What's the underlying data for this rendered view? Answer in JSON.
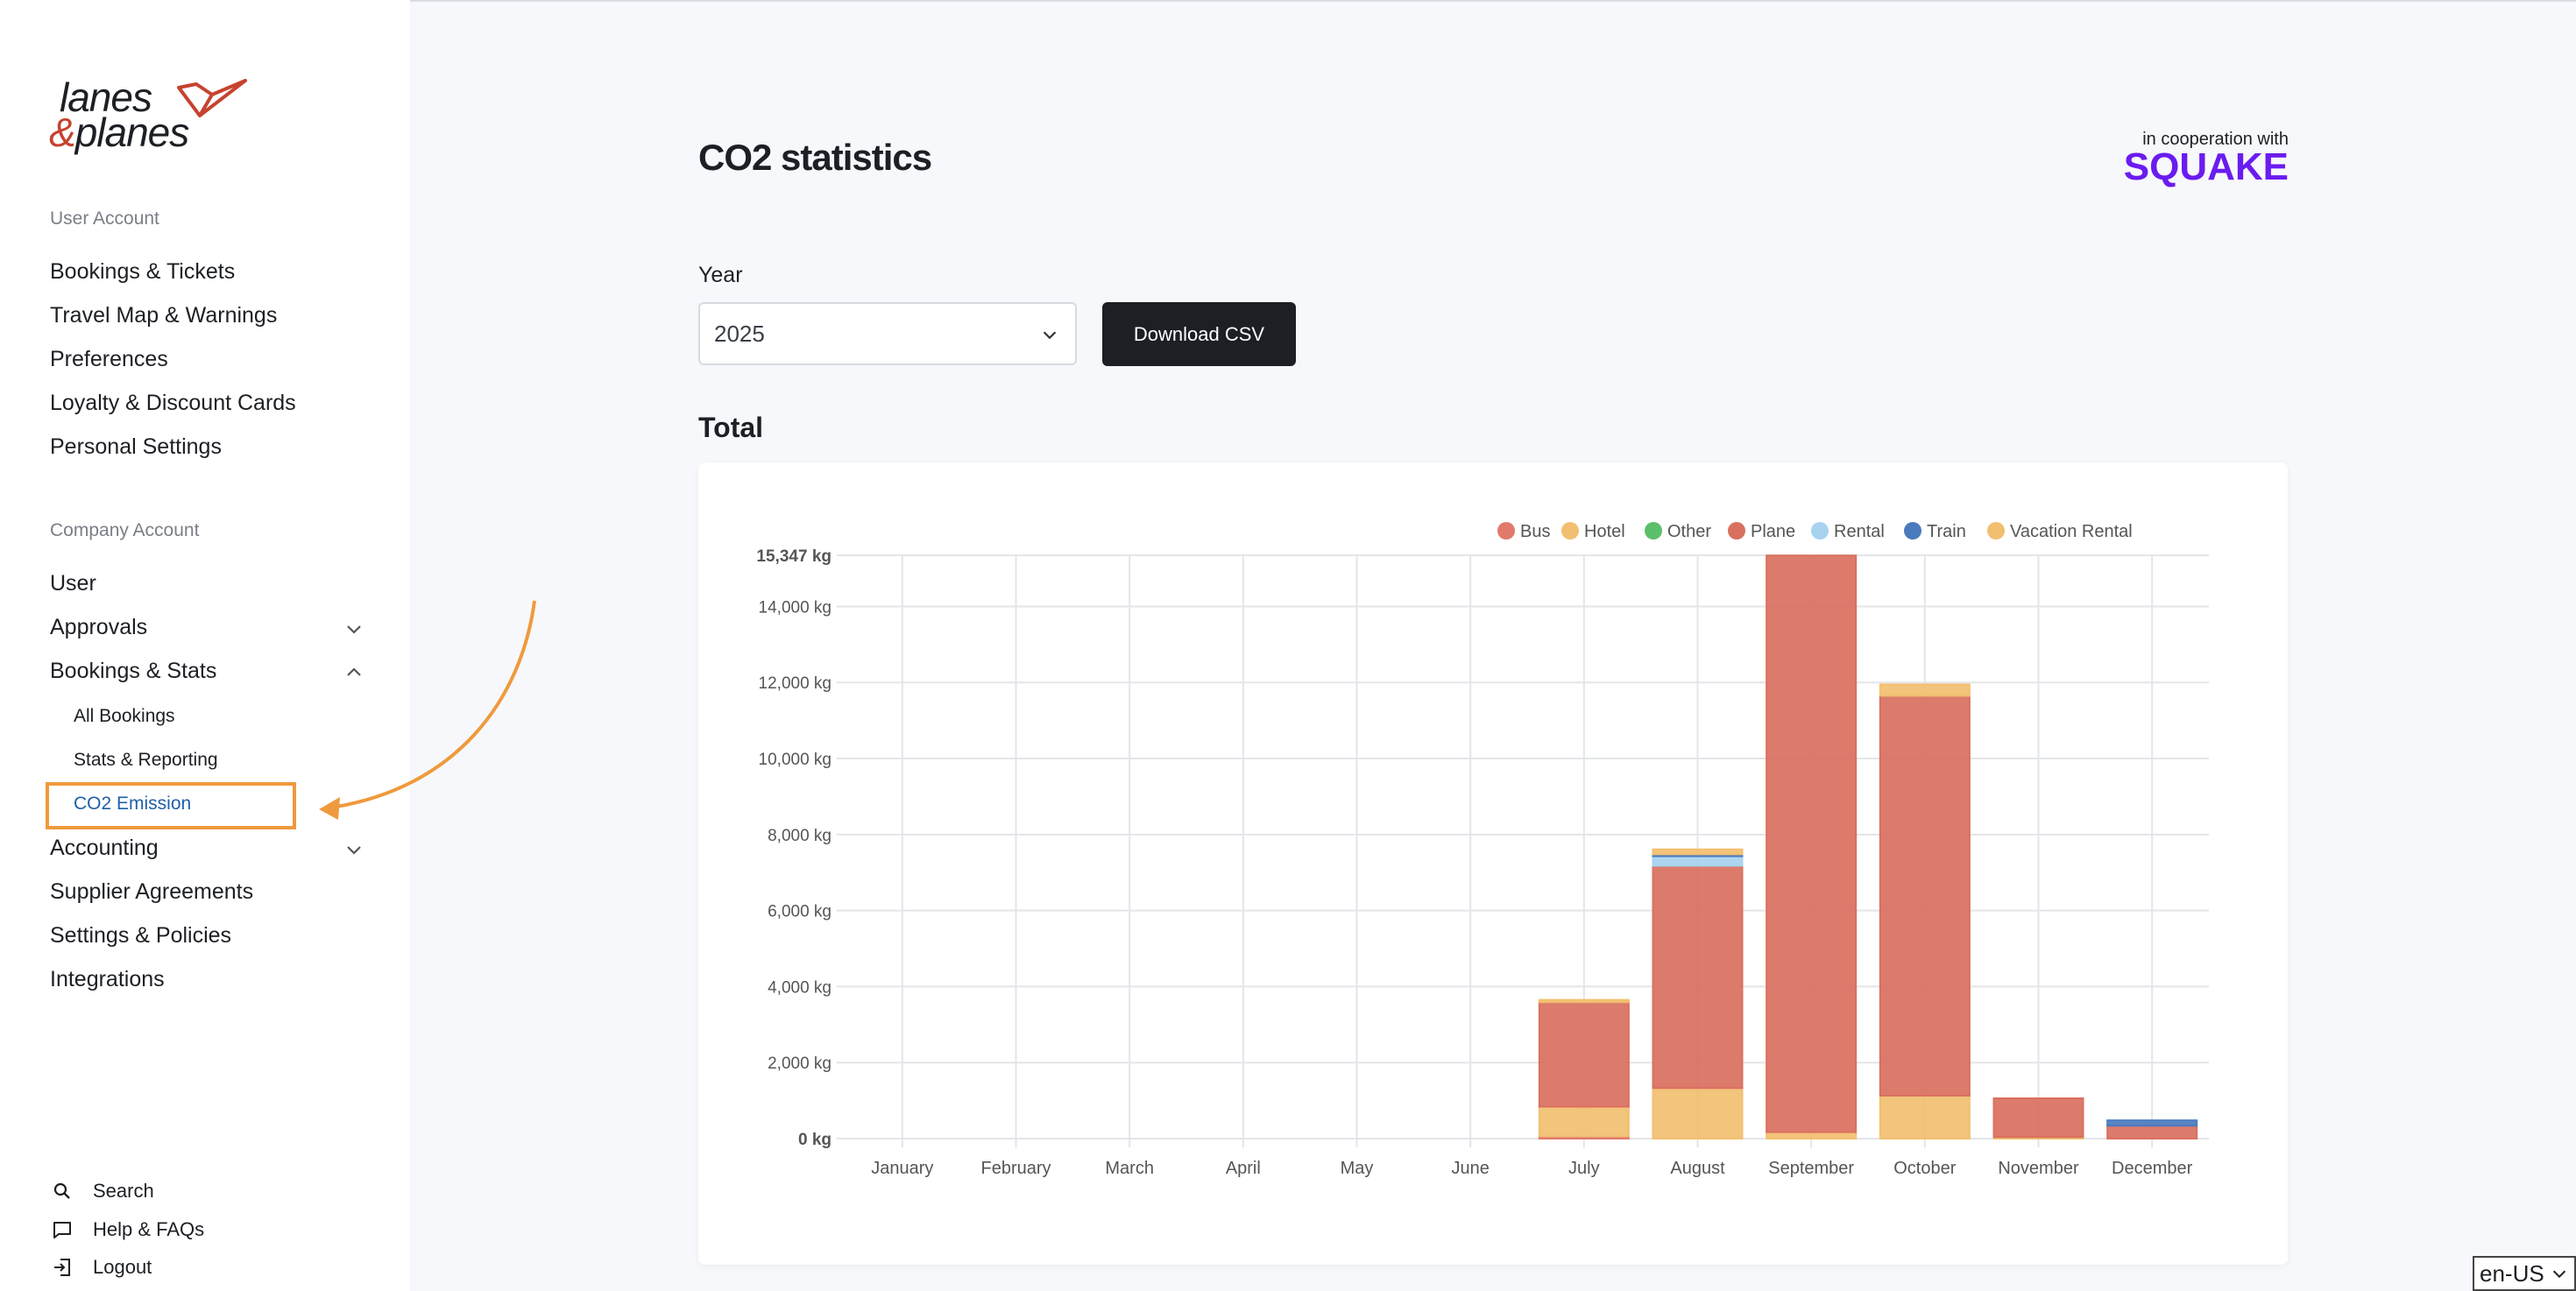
{
  "brand": {
    "line1": "lanes",
    "amp": "&",
    "line2": "planes"
  },
  "sidebar": {
    "user_account_label": "User Account",
    "user_items": [
      {
        "label": "Bookings & Tickets"
      },
      {
        "label": "Travel Map & Warnings"
      },
      {
        "label": "Preferences"
      },
      {
        "label": "Loyalty & Discount Cards"
      },
      {
        "label": "Personal Settings"
      }
    ],
    "company_account_label": "Company Account",
    "company_items": [
      {
        "label": "User"
      },
      {
        "label": "Approvals"
      },
      {
        "label": "Bookings & Stats"
      },
      {
        "label": "Accounting"
      },
      {
        "label": "Supplier Agreements"
      },
      {
        "label": "Settings & Policies"
      },
      {
        "label": "Integrations"
      }
    ],
    "bookings_sub_items": [
      {
        "label": "All Bookings"
      },
      {
        "label": "Stats & Reporting"
      },
      {
        "label": "CO2 Emission"
      }
    ],
    "footer": [
      {
        "label": "Search",
        "icon": "search-icon"
      },
      {
        "label": "Help & FAQs",
        "icon": "chat-icon"
      },
      {
        "label": "Logout",
        "icon": "logout-icon"
      }
    ]
  },
  "main": {
    "title": "CO2 statistics",
    "coop_small": "in cooperation with",
    "coop_brand": "SQUAKE",
    "year_label": "Year",
    "year_value": "2025",
    "download_label": "Download CSV",
    "total_title": "Total"
  },
  "lang": "en-US",
  "chart_data": {
    "type": "bar",
    "stacked": true,
    "categories": [
      "January",
      "February",
      "March",
      "April",
      "May",
      "June",
      "July",
      "August",
      "September",
      "October",
      "November",
      "December"
    ],
    "series": [
      {
        "name": "Bus",
        "color": "#e07a6c",
        "values": [
          0,
          0,
          0,
          0,
          0,
          0,
          60,
          0,
          0,
          0,
          0,
          0
        ]
      },
      {
        "name": "Hotel",
        "color": "#f2bf70",
        "values": [
          0,
          0,
          0,
          0,
          0,
          0,
          780,
          1330,
          170,
          1130,
          40,
          0
        ]
      },
      {
        "name": "Other",
        "color": "#5cbf6a",
        "values": [
          0,
          0,
          0,
          0,
          0,
          0,
          0,
          0,
          0,
          0,
          0,
          0
        ]
      },
      {
        "name": "Plane",
        "color": "#d9705f",
        "values": [
          0,
          0,
          0,
          0,
          0,
          0,
          2750,
          5850,
          15170,
          10520,
          1020,
          340
        ]
      },
      {
        "name": "Rental",
        "color": "#a7d3f0",
        "values": [
          0,
          0,
          0,
          0,
          0,
          0,
          0,
          250,
          0,
          0,
          0,
          0
        ]
      },
      {
        "name": "Train",
        "color": "#4a7bbd",
        "values": [
          0,
          0,
          0,
          0,
          0,
          0,
          0,
          50,
          0,
          0,
          0,
          140
        ]
      },
      {
        "name": "Vacation Rental",
        "color": "#f2bf70",
        "values": [
          0,
          0,
          0,
          0,
          0,
          0,
          60,
          130,
          0,
          300,
          0,
          0
        ]
      }
    ],
    "y_ticks": [
      "0 kg",
      "2,000 kg",
      "4,000 kg",
      "6,000 kg",
      "8,000 kg",
      "10,000 kg",
      "12,000 kg",
      "14,000 kg",
      "15,347 kg"
    ],
    "y_tick_values": [
      0,
      2000,
      4000,
      6000,
      8000,
      10000,
      12000,
      14000,
      15347
    ],
    "ylim": [
      0,
      15347
    ],
    "grid": true,
    "legend": "top-right"
  }
}
